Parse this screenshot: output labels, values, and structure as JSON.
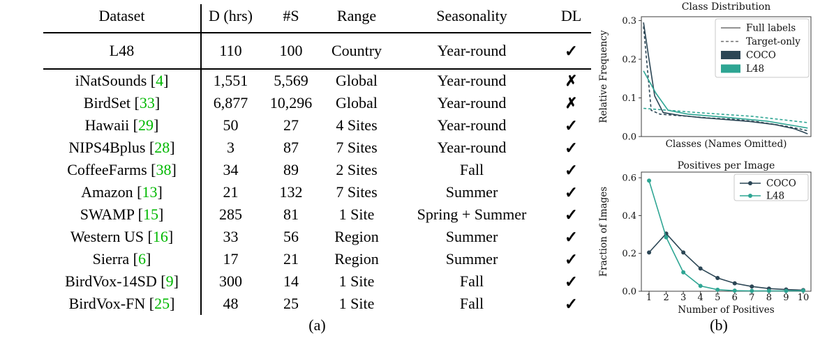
{
  "table": {
    "caption": "(a)",
    "headers": [
      "Dataset",
      "D (hrs)",
      "#S",
      "Range",
      "Seasonality",
      "DL"
    ],
    "check_glyph": "✓",
    "cross_glyph": "✗",
    "cite_color": "#00b800",
    "l48_row": {
      "dataset": "L48",
      "cite": "",
      "d_hrs": "110",
      "s": "100",
      "range": "Country",
      "seasonality": "Year-round",
      "dl": "check"
    },
    "rows": [
      {
        "dataset": "iNatSounds",
        "cite": "4",
        "d_hrs": "1,551",
        "s": "5,569",
        "range": "Global",
        "seasonality": "Year-round",
        "dl": "cross"
      },
      {
        "dataset": "BirdSet",
        "cite": "33",
        "d_hrs": "6,877",
        "s": "10,296",
        "range": "Global",
        "seasonality": "Year-round",
        "dl": "cross"
      },
      {
        "dataset": "Hawaii",
        "cite": "29",
        "d_hrs": "50",
        "s": "27",
        "range": "4 Sites",
        "seasonality": "Year-round",
        "dl": "check"
      },
      {
        "dataset": "NIPS4Bplus",
        "cite": "28",
        "d_hrs": "3",
        "s": "87",
        "range": "7 Sites",
        "seasonality": "Year-round",
        "dl": "check"
      },
      {
        "dataset": "CoffeeFarms",
        "cite": "38",
        "d_hrs": "34",
        "s": "89",
        "range": "2 Sites",
        "seasonality": "Fall",
        "dl": "check"
      },
      {
        "dataset": "Amazon",
        "cite": "13",
        "d_hrs": "21",
        "s": "132",
        "range": "7 Sites",
        "seasonality": "Summer",
        "dl": "check"
      },
      {
        "dataset": "SWAMP",
        "cite": "15",
        "d_hrs": "285",
        "s": "81",
        "range": "1 Site",
        "seasonality": "Spring + Summer",
        "dl": "check"
      },
      {
        "dataset": "Western US",
        "cite": "16",
        "d_hrs": "33",
        "s": "56",
        "range": "Region",
        "seasonality": "Summer",
        "dl": "check"
      },
      {
        "dataset": "Sierra",
        "cite": "6",
        "d_hrs": "17",
        "s": "21",
        "range": "Region",
        "seasonality": "Summer",
        "dl": "check"
      },
      {
        "dataset": "BirdVox-14SD",
        "cite": "9",
        "d_hrs": "300",
        "s": "14",
        "range": "1 Site",
        "seasonality": "Fall",
        "dl": "check"
      },
      {
        "dataset": "BirdVox-FN",
        "cite": "25",
        "d_hrs": "48",
        "s": "25",
        "range": "1 Site",
        "seasonality": "Fall",
        "dl": "check"
      }
    ]
  },
  "charts": {
    "caption": "(b)"
  },
  "colors": {
    "coco": "#2c4655",
    "l48": "#2ea593",
    "legend_gray": "#6e6e6e"
  },
  "chart_data": [
    {
      "type": "line",
      "title": "Class Distribution",
      "xlabel": "Classes (Names Omitted)",
      "ylabel": "Relative Frequency",
      "xlim": [
        -0.013,
        1.02
      ],
      "ylim": [
        0,
        0.31
      ],
      "ytick_values": [
        0,
        0.1,
        0.2,
        0.3
      ],
      "ytick_labels": [
        "0.0",
        "0.1",
        "0.2",
        "0.3"
      ],
      "xtick_values": [],
      "xtick_labels": [],
      "grid": false,
      "legend_position": "upper right",
      "legend": [
        {
          "type": "line",
          "label": "Full labels",
          "color": "#6e6e6e"
        },
        {
          "type": "dash",
          "label": "Target-only",
          "color": "#6e6e6e"
        },
        {
          "type": "patch",
          "label": "COCO",
          "color": "#2c4655"
        },
        {
          "type": "patch",
          "label": "L48",
          "color": "#2ea593"
        }
      ],
      "series": [
        {
          "name": "COCO Full labels",
          "color": "#2c4655",
          "dash": false,
          "points": [
            [
              0,
              0.295
            ],
            [
              0.03,
              0.21
            ],
            [
              0.068,
              0.105
            ],
            [
              0.12,
              0.062
            ],
            [
              0.22,
              0.055
            ],
            [
              0.35,
              0.049
            ],
            [
              0.5,
              0.044
            ],
            [
              0.65,
              0.039
            ],
            [
              0.8,
              0.031
            ],
            [
              0.92,
              0.02
            ],
            [
              0.97,
              0.012
            ],
            [
              1,
              0.007
            ]
          ]
        },
        {
          "name": "COCO Target-only",
          "color": "#2c4655",
          "dash": true,
          "points": [
            [
              0,
              0.285
            ],
            [
              0.047,
              0.068
            ],
            [
              0.1,
              0.058
            ],
            [
              0.25,
              0.053
            ],
            [
              0.4,
              0.048
            ],
            [
              0.54,
              0.045
            ],
            [
              0.7,
              0.038
            ],
            [
              0.85,
              0.028
            ],
            [
              0.95,
              0.02
            ],
            [
              1,
              0.015
            ]
          ]
        },
        {
          "name": "L48 Full labels",
          "color": "#2ea593",
          "dash": false,
          "points": [
            [
              0,
              0.17
            ],
            [
              0.076,
              0.112
            ],
            [
              0.15,
              0.068
            ],
            [
              0.27,
              0.058
            ],
            [
              0.5,
              0.05
            ],
            [
              0.75,
              0.04
            ],
            [
              0.92,
              0.028
            ],
            [
              1,
              0.022
            ]
          ]
        },
        {
          "name": "L48 Target-only",
          "color": "#2ea593",
          "dash": true,
          "points": [
            [
              0,
              0.073
            ],
            [
              0.33,
              0.062
            ],
            [
              0.67,
              0.052
            ],
            [
              1,
              0.036
            ]
          ]
        }
      ]
    },
    {
      "type": "line",
      "title": "Positives per Image",
      "xlabel": "Number of Positives",
      "ylabel": "Fraction of Images",
      "xlim": [
        0.55,
        10.45
      ],
      "ylim": [
        0,
        0.63
      ],
      "ytick_values": [
        0,
        0.2,
        0.4,
        0.6
      ],
      "ytick_labels": [
        "0.0",
        "0.2",
        "0.4",
        "0.6"
      ],
      "xtick_values": [
        1,
        2,
        3,
        4,
        5,
        6,
        7,
        8,
        9,
        10
      ],
      "xtick_labels": [
        "1",
        "2",
        "3",
        "4",
        "5",
        "6",
        "7",
        "8",
        "9",
        "10"
      ],
      "x": [
        1,
        2,
        3,
        4,
        5,
        6,
        7,
        8,
        9,
        10
      ],
      "grid": false,
      "legend_position": "upper right",
      "legend": [
        {
          "type": "marker-line",
          "label": "COCO",
          "color": "#2c4655"
        },
        {
          "type": "marker-line",
          "label": "L48",
          "color": "#2ea593"
        }
      ],
      "series": [
        {
          "name": "COCO",
          "color": "#2c4655",
          "marker": true,
          "values": [
            0.205,
            0.305,
            0.205,
            0.12,
            0.07,
            0.042,
            0.025,
            0.014,
            0.009,
            0.006
          ]
        },
        {
          "name": "L48",
          "color": "#2ea593",
          "marker": true,
          "values": [
            0.585,
            0.285,
            0.1,
            0.028,
            0.008,
            0.003,
            0.002,
            0.002,
            0.002,
            0.003
          ]
        }
      ]
    }
  ]
}
